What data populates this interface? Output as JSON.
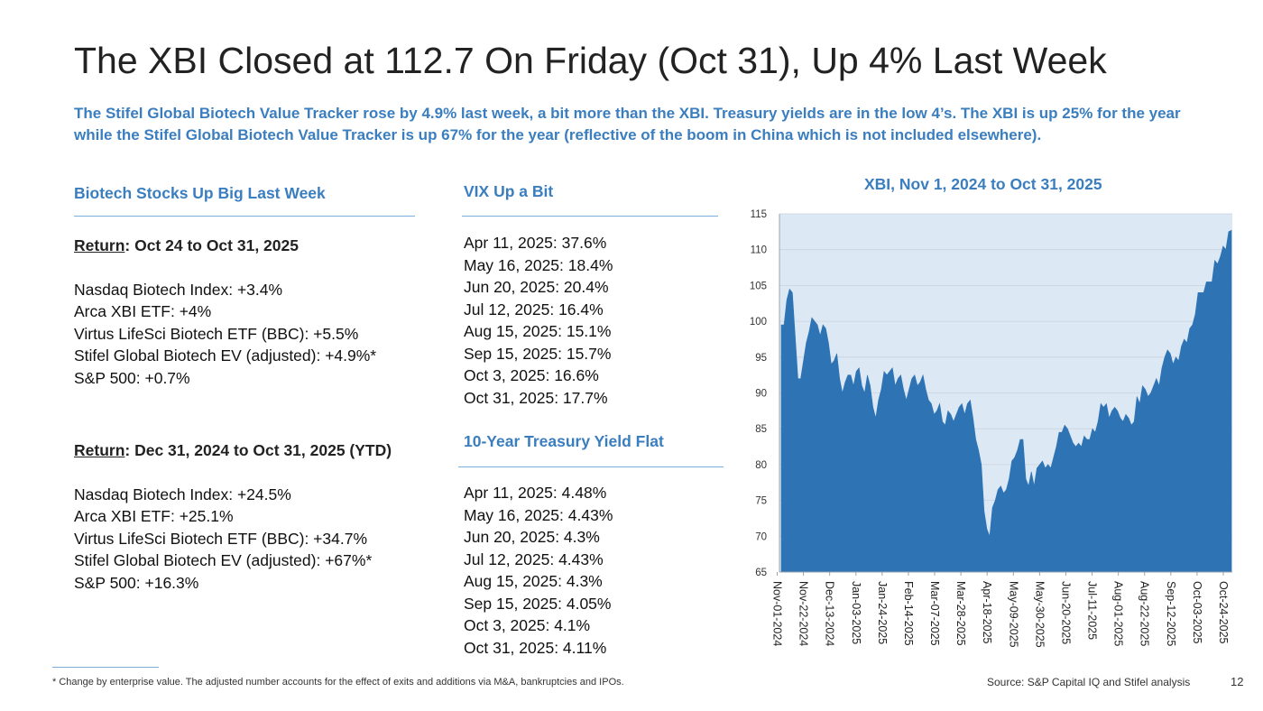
{
  "title": "The XBI Closed at 112.7 On Friday (Oct 31), Up 4% Last Week",
  "subtitle": "The Stifel Global Biotech Value Tracker rose by 4.9% last week, a bit more than the XBI. Treasury yields are in the low 4’s. The XBI is up 25% for the year while the Stifel Global Biotech Value Tracker is up 67% for the year (reflective of the boom in China which is not included elsewhere).",
  "left": {
    "heading": "Biotech Stocks Up Big Last Week",
    "weekly": {
      "label_word": "Return",
      "label_rest": ": Oct 24 to Oct 31, 2025",
      "lines": [
        "Nasdaq Biotech Index: +3.4%",
        "Arca XBI ETF: +4%",
        "Virtus LifeSci Biotech ETF (BBC): +5.5%",
        "Stifel Global Biotech EV (adjusted): +4.9%*",
        "S&P 500: +0.7%"
      ]
    },
    "ytd": {
      "label_word": "Return",
      "label_rest": ": Dec 31, 2024 to Oct 31, 2025 (YTD)",
      "lines": [
        "Nasdaq Biotech Index: +24.5%",
        "Arca XBI ETF: +25.1%",
        "Virtus LifeSci Biotech ETF (BBC): +34.7%",
        "Stifel Global Biotech EV (adjusted): +67%*",
        "S&P 500: +16.3%"
      ]
    }
  },
  "middle": {
    "vix_heading": "VIX Up a Bit",
    "vix_lines": [
      "Apr 11, 2025: 37.6%",
      "May 16, 2025: 18.4%",
      "Jun 20, 2025: 20.4%",
      "Jul 12, 2025: 16.4%",
      "Aug 15, 2025: 15.1%",
      "Sep 15, 2025: 15.7%",
      "Oct 3, 2025: 16.6%",
      "Oct 31, 2025: 17.7%"
    ],
    "treasury_heading": "10-Year Treasury Yield Flat",
    "treasury_lines": [
      "Apr 11, 2025: 4.48%",
      "May 16, 2025: 4.43%",
      "Jun 20, 2025: 4.3%",
      "Jul 12, 2025: 4.43%",
      "Aug 15, 2025: 4.3%",
      "Sep 15, 2025: 4.05%",
      "Oct 3, 2025: 4.1%",
      "Oct 31, 2025: 4.11%"
    ]
  },
  "chart_data": {
    "type": "area",
    "title": "XBI, Nov 1, 2024 to Oct 31, 2025",
    "ylim": [
      65,
      115
    ],
    "yticks": [
      65,
      70,
      75,
      80,
      85,
      90,
      95,
      100,
      105,
      110,
      115
    ],
    "xlabels": [
      "Nov-01-2024",
      "Nov-22-2024",
      "Dec-13-2024",
      "Jan-03-2025",
      "Jan-24-2025",
      "Feb-14-2025",
      "Mar-07-2025",
      "Mar-28-2025",
      "Apr-18-2025",
      "May-09-2025",
      "May-30-2025",
      "Jun-20-2025",
      "Jul-11-2025",
      "Aug-01-2025",
      "Aug-22-2025",
      "Sep-12-2025",
      "Oct-03-2025",
      "Oct-24-2025"
    ],
    "grid": true,
    "fill_color": "#2e74b5",
    "plot_background": "#dde8f5",
    "series": [
      {
        "values": [
          99.5,
          99.5,
          103,
          104.5,
          104,
          98,
          92,
          92,
          94.5,
          97,
          98.5,
          100.5,
          100,
          99.5,
          98,
          99.5,
          99,
          97,
          94,
          94.5,
          95.5,
          92,
          90,
          91.5,
          92.5,
          92.5,
          91,
          93,
          93.5,
          91,
          90,
          92.5,
          91,
          88,
          86.5,
          89,
          90.5,
          93,
          92.5,
          93,
          93.5,
          91,
          92,
          92.5,
          90.5,
          89,
          90.5,
          92,
          92.5,
          91,
          91.5,
          92.5,
          90.5,
          89,
          88.5,
          87,
          87.5,
          88.5,
          86,
          85.5,
          87.5,
          87,
          86,
          87,
          88,
          88.5,
          87,
          88.5,
          89,
          86.5,
          83.5,
          82,
          80,
          73.5,
          71,
          70,
          74,
          75,
          76.5,
          77,
          76,
          76.5,
          78,
          80.5,
          81,
          82,
          83.5,
          83.5,
          78,
          77,
          79,
          77,
          79.5,
          80,
          80.5,
          79.5,
          80,
          79.5,
          81,
          82.5,
          84.5,
          84.5,
          85.5,
          85,
          84,
          83,
          82.5,
          83,
          82.5,
          84,
          83.5,
          83.5,
          85,
          84.5,
          86,
          88.5,
          88,
          88.5,
          86.5,
          87.5,
          88,
          87.5,
          86.5,
          86,
          87,
          86.5,
          85.5,
          86,
          89.5,
          88.5,
          91,
          90.5,
          89.5,
          90,
          91,
          92,
          91,
          93.5,
          95,
          96,
          95.5,
          94,
          95,
          94.5,
          96.5,
          97.5,
          97,
          99,
          99.5,
          101,
          104,
          104,
          104,
          105.5,
          105.5,
          105.5,
          108.5,
          108,
          109,
          110.5,
          110,
          112.5,
          112.7
        ]
      }
    ]
  },
  "footnote": "* Change by enterprise value.  The adjusted number accounts for the effect of exits and additions via M&A, bankruptcies and IPOs.",
  "source": "Source: S&P Capital IQ and Stifel analysis",
  "page_number": "12"
}
